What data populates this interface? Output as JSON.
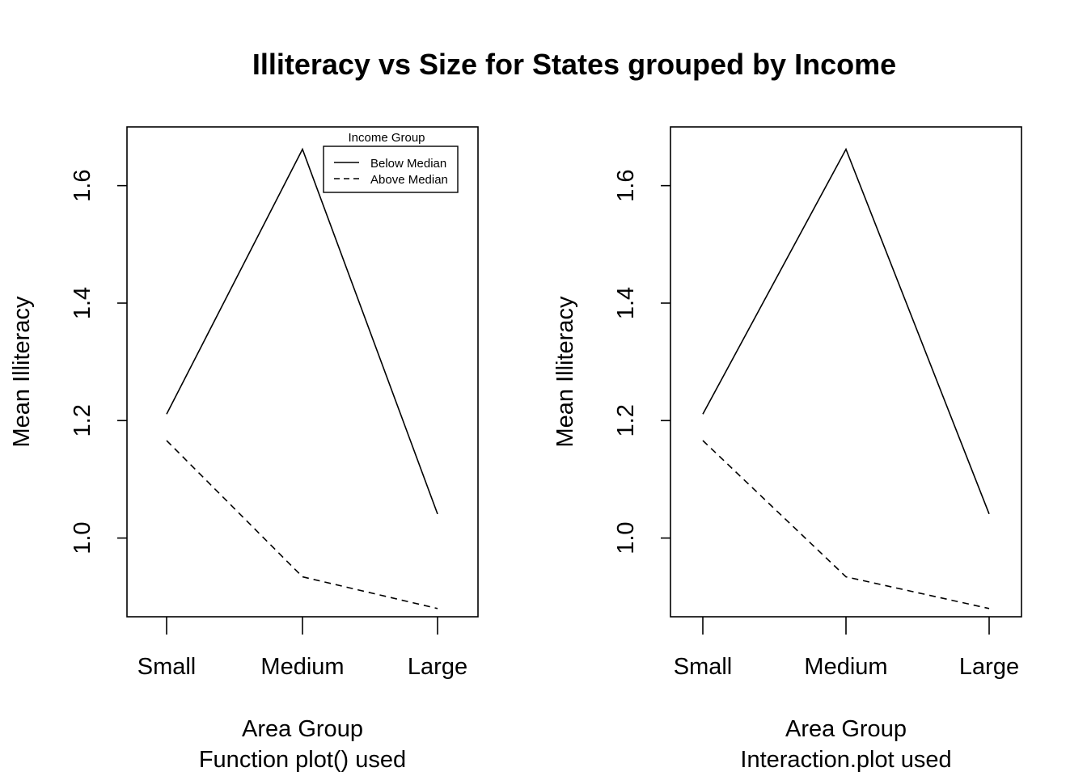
{
  "title": "Illiteracy vs Size for States grouped by Income",
  "chart_data": [
    {
      "type": "line",
      "title": "",
      "xlabel": "Area Group",
      "subtitle": "Function plot() used",
      "ylabel": "Mean Illiteracy",
      "categories": [
        "Small",
        "Medium",
        "Large"
      ],
      "yticks": [
        "1.0",
        "1.2",
        "1.4",
        "1.6"
      ],
      "ylim": [
        0.866,
        1.7
      ],
      "grid": false,
      "legend": {
        "title": "Income Group",
        "placement": "top-right",
        "entries": [
          "Below Median",
          "Above Median"
        ]
      },
      "series": [
        {
          "name": "Below Median",
          "line_style": "solid",
          "values": [
            1.211,
            1.662,
            1.041
          ]
        },
        {
          "name": "Above Median",
          "line_style": "dashed",
          "values": [
            1.166,
            0.934,
            0.88
          ]
        }
      ]
    },
    {
      "type": "line",
      "title": "",
      "xlabel": "Area Group",
      "subtitle": "Interaction.plot used",
      "ylabel": "Mean Illiteracy",
      "categories": [
        "Small",
        "Medium",
        "Large"
      ],
      "yticks": [
        "1.0",
        "1.2",
        "1.4",
        "1.6"
      ],
      "ylim": [
        0.866,
        1.7
      ],
      "grid": false,
      "series": [
        {
          "name": "",
          "line_style": "solid",
          "values": [
            1.211,
            1.662,
            1.041
          ]
        },
        {
          "name": "",
          "line_style": "dashed",
          "values": [
            1.166,
            0.934,
            0.88
          ]
        }
      ]
    }
  ]
}
